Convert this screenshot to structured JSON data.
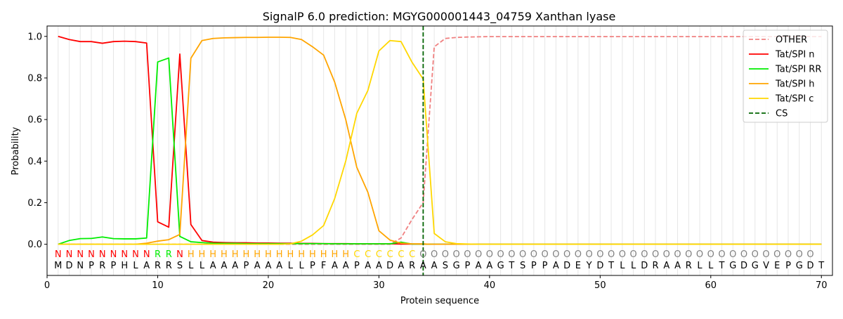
{
  "chart_data": {
    "type": "line",
    "title": "SignalP 6.0 prediction: MGYG000001443_04759 Xanthan lyase",
    "xlabel": "Protein sequence",
    "ylabel": "Probability",
    "xlim": [
      0,
      71
    ],
    "ylim": [
      -0.15,
      1.05
    ],
    "x_ticks": [
      0,
      10,
      20,
      30,
      40,
      50,
      60,
      70
    ],
    "y_ticks": [
      0.0,
      0.2,
      0.4,
      0.6,
      0.8,
      1.0
    ],
    "x_tick_labels": [
      "0",
      "10",
      "20",
      "30",
      "40",
      "50",
      "60",
      "70"
    ],
    "y_tick_labels": [
      "0.0",
      "0.2",
      "0.4",
      "0.6",
      "0.8",
      "1.0"
    ],
    "grid": "vertical lines at each residue",
    "legend_position": "top-right",
    "sequence": "MDNPRPHLARRSLLAAAPAAALLPFAAPAADARAASGPAAGTSPPADEYDTLLDRAARLLTGDGVEPGDT",
    "labels": "NNNNNNNNNRRNHHHHHHHHHHHHHHHCCCCCCOOOOOOOOOOOOOOOOOOOOOOOOOOOOOOOOOOOO",
    "label_colors": {
      "N": "#ff0000",
      "R": "#00ee00",
      "H": "#ffa500",
      "C": "#ffd700",
      "O": "#808080"
    },
    "cleavage_site": 34,
    "series": [
      {
        "name": "OTHER",
        "color": "#f08080",
        "dash": true,
        "values": [
          0,
          0,
          0,
          0,
          0,
          0,
          0,
          0,
          0,
          0,
          0,
          0,
          0,
          0,
          0,
          0,
          0,
          0,
          0,
          0,
          0,
          0,
          0,
          0,
          0,
          0,
          0,
          0,
          0,
          0,
          0,
          0.03,
          0.12,
          0.2,
          0.95,
          0.99,
          0.995,
          0.997,
          0.998,
          0.999,
          0.999,
          0.999,
          0.999,
          0.999,
          0.999,
          0.999,
          0.999,
          0.999,
          0.999,
          0.999,
          0.999,
          0.999,
          0.999,
          0.999,
          0.999,
          0.999,
          0.999,
          0.999,
          0.999,
          0.999,
          0.999,
          0.999,
          0.999,
          0.999,
          0.999,
          0.999,
          0.999,
          0.999,
          0.999,
          0.999
        ]
      },
      {
        "name": "Tat/SPI n",
        "color": "#ff0000",
        "values": [
          1.0,
          0.985,
          0.975,
          0.975,
          0.967,
          0.975,
          0.977,
          0.975,
          0.968,
          0.108,
          0.082,
          0.915,
          0.095,
          0.018,
          0.01,
          0.008,
          0.007,
          0.007,
          0.006,
          0.006,
          0.005,
          0.005,
          0.004,
          0.004,
          0.003,
          0.003,
          0.003,
          0.002,
          0.002,
          0.002,
          0.002,
          0.001,
          0.001,
          0.001,
          0,
          0,
          0,
          0,
          0,
          0,
          0,
          0,
          0,
          0,
          0,
          0,
          0,
          0,
          0,
          0,
          0,
          0,
          0,
          0,
          0,
          0,
          0,
          0,
          0,
          0,
          0,
          0,
          0,
          0,
          0,
          0,
          0,
          0,
          0,
          0
        ]
      },
      {
        "name": "Tat/SPI RR",
        "color": "#00ee00",
        "values": [
          0,
          0.018,
          0.027,
          0.028,
          0.035,
          0.027,
          0.026,
          0.026,
          0.03,
          0.877,
          0.896,
          0.038,
          0.012,
          0.008,
          0.005,
          0.004,
          0.004,
          0.003,
          0.003,
          0.003,
          0.003,
          0.003,
          0.003,
          0.003,
          0.003,
          0.002,
          0.002,
          0.002,
          0.002,
          0.002,
          0.002,
          0.01,
          0.001,
          0.001,
          0,
          0,
          0,
          0,
          0,
          0,
          0,
          0,
          0,
          0,
          0,
          0,
          0,
          0,
          0,
          0,
          0,
          0,
          0,
          0,
          0,
          0,
          0,
          0,
          0,
          0,
          0,
          0,
          0,
          0,
          0,
          0,
          0,
          0,
          0,
          0
        ]
      },
      {
        "name": "Tat/SPI h",
        "color": "#ffa500",
        "values": [
          0,
          0,
          0,
          0,
          0,
          0,
          0,
          0,
          0.005,
          0.015,
          0.022,
          0.047,
          0.895,
          0.98,
          0.99,
          0.993,
          0.994,
          0.995,
          0.995,
          0.996,
          0.996,
          0.995,
          0.985,
          0.95,
          0.91,
          0.78,
          0.6,
          0.37,
          0.25,
          0.065,
          0.02,
          0.005,
          0.002,
          0.001,
          0,
          0,
          0,
          0,
          0,
          0,
          0,
          0,
          0,
          0,
          0,
          0,
          0,
          0,
          0,
          0,
          0,
          0,
          0,
          0,
          0,
          0,
          0,
          0,
          0,
          0,
          0,
          0,
          0,
          0,
          0,
          0,
          0,
          0,
          0,
          0
        ]
      },
      {
        "name": "Tat/SPI c",
        "color": "#ffd700",
        "values": [
          0,
          0,
          0,
          0,
          0,
          0,
          0,
          0,
          0,
          0,
          0,
          0,
          0,
          0,
          0,
          0,
          0,
          0,
          0,
          0,
          0,
          0.002,
          0.015,
          0.045,
          0.09,
          0.22,
          0.4,
          0.63,
          0.74,
          0.93,
          0.98,
          0.975,
          0.875,
          0.795,
          0.052,
          0.012,
          0.003,
          0.001,
          0,
          0,
          0,
          0,
          0,
          0,
          0,
          0,
          0,
          0,
          0,
          0,
          0,
          0,
          0,
          0,
          0,
          0,
          0,
          0,
          0,
          0,
          0,
          0,
          0,
          0,
          0,
          0,
          0,
          0,
          0,
          0
        ]
      },
      {
        "name": "CS",
        "color": "#006400",
        "dash": true,
        "values": []
      }
    ]
  }
}
